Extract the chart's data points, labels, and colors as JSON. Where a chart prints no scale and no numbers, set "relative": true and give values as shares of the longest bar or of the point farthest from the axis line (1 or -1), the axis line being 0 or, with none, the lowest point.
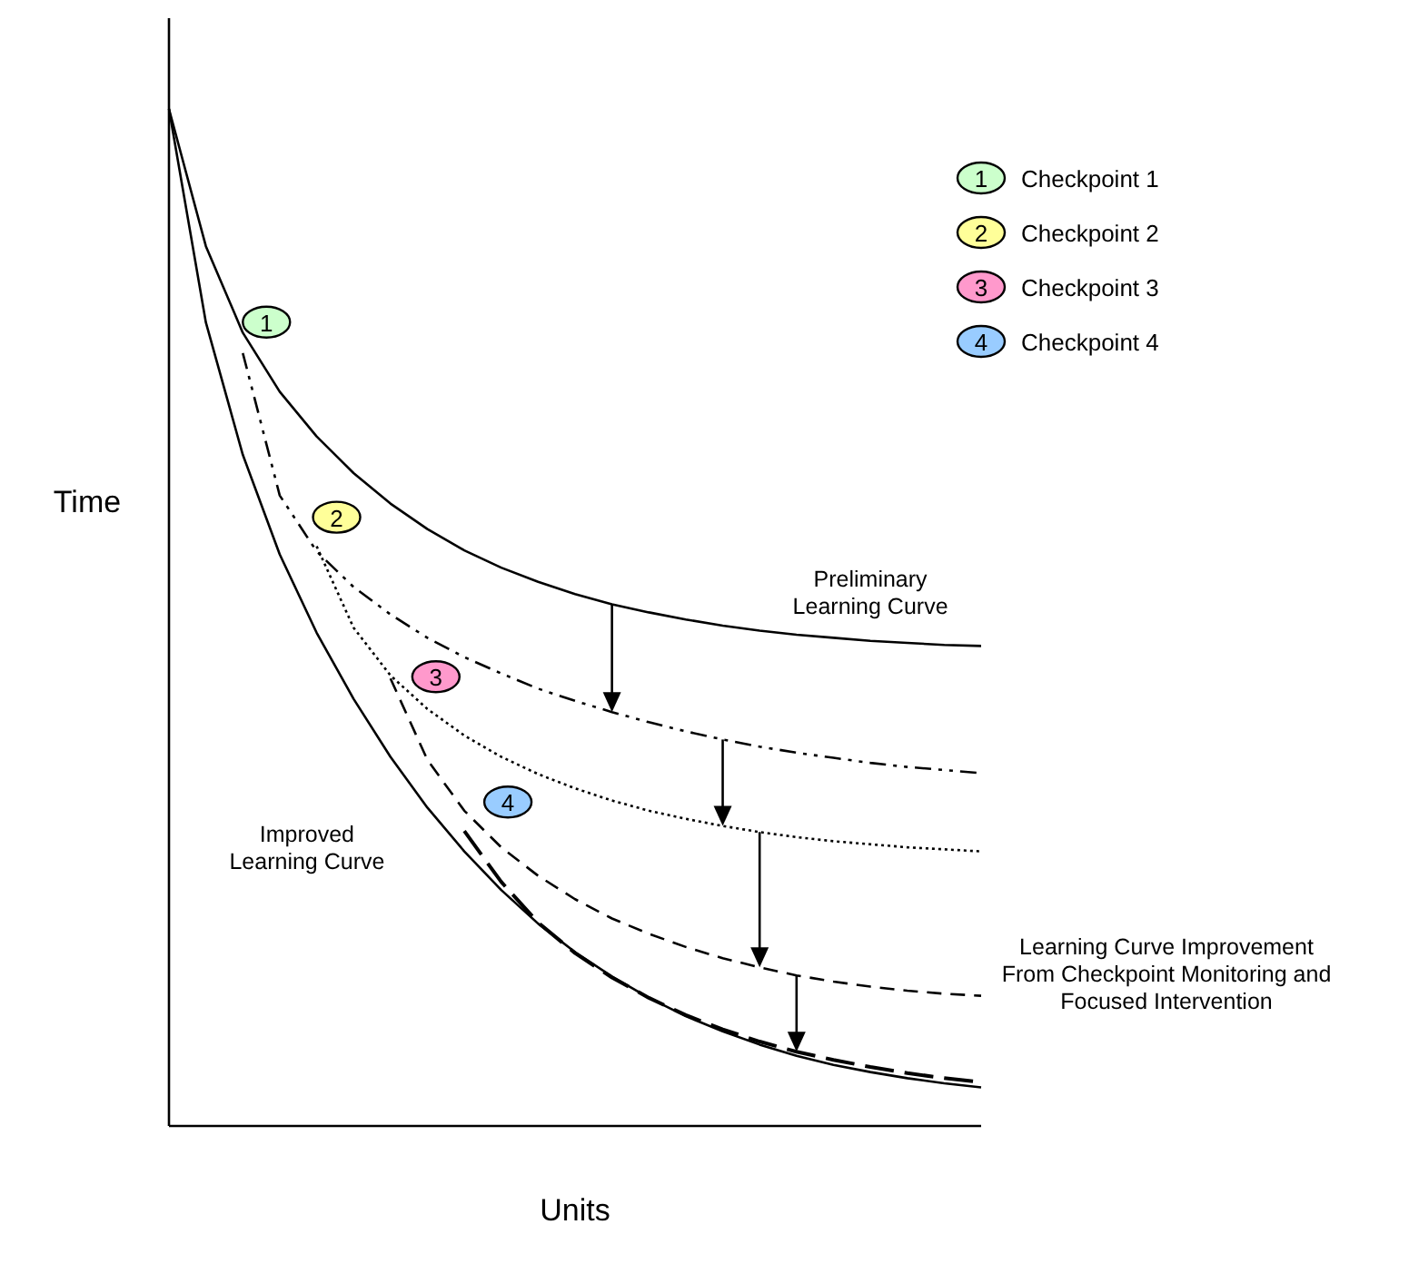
{
  "chart_data": {
    "type": "line",
    "relative": true,
    "xlabel": "Units",
    "ylabel": "Time",
    "categories": [
      null,
      null,
      null,
      null,
      null,
      null,
      null,
      null,
      null,
      null,
      null,
      null,
      null,
      null,
      null,
      null,
      null,
      null,
      null,
      null,
      null,
      null,
      null
    ],
    "series": [
      {
        "color": "#000000",
        "line_style": "solid",
        "values": [
          1.0,
          0.865,
          0.78,
          0.722,
          0.678,
          0.642,
          0.612,
          0.587,
          0.566,
          0.549,
          0.535,
          0.523,
          0.513,
          0.505,
          0.498,
          0.492,
          0.487,
          0.483,
          0.48,
          0.477,
          0.475,
          0.473,
          0.472
        ]
      },
      {
        "color": "#000000",
        "line_style": "dashdot",
        "values": [
          null,
          null,
          0.76,
          0.62,
          0.565,
          0.53,
          0.503,
          0.48,
          0.461,
          0.445,
          0.43,
          0.418,
          0.407,
          0.397,
          0.388,
          0.38,
          0.373,
          0.367,
          0.362,
          0.357,
          0.353,
          0.35,
          0.347
        ]
      },
      {
        "color": "#000000",
        "line_style": "dotted",
        "values": [
          null,
          null,
          null,
          null,
          0.57,
          0.49,
          0.443,
          0.41,
          0.384,
          0.363,
          0.346,
          0.332,
          0.32,
          0.31,
          0.302,
          0.295,
          0.289,
          0.284,
          0.28,
          0.277,
          0.274,
          0.272,
          0.27
        ]
      },
      {
        "color": "#000000",
        "line_style": "dashed",
        "values": [
          null,
          null,
          null,
          null,
          null,
          null,
          0.44,
          0.36,
          0.31,
          0.274,
          0.246,
          0.223,
          0.204,
          0.189,
          0.176,
          0.165,
          0.156,
          0.148,
          0.142,
          0.137,
          0.133,
          0.13,
          0.128
        ]
      },
      {
        "color": "#000000",
        "line_style": "longdashed",
        "values": [
          null,
          null,
          null,
          null,
          null,
          null,
          null,
          null,
          0.29,
          0.24,
          0.2,
          0.17,
          0.146,
          0.126,
          0.109,
          0.095,
          0.083,
          0.073,
          0.065,
          0.058,
          0.052,
          0.047,
          0.043
        ]
      },
      {
        "color": "#000000",
        "line_style": "solid",
        "values": [
          1.0,
          0.79,
          0.66,
          0.562,
          0.485,
          0.42,
          0.363,
          0.313,
          0.27,
          0.232,
          0.199,
          0.171,
          0.147,
          0.126,
          0.108,
          0.093,
          0.08,
          0.069,
          0.06,
          0.053,
          0.047,
          0.042,
          0.038
        ]
      }
    ],
    "annotations": [
      "Preliminary\nLearning Curve",
      "Improved\nLearning Curve",
      "Learning Curve Improvement\nFrom Checkpoint Monitoring and\nFocused Intervention",
      "1",
      "2",
      "3",
      "4",
      "Checkpoint 1",
      "Checkpoint 2",
      "Checkpoint 3",
      "Checkpoint 4"
    ]
  }
}
